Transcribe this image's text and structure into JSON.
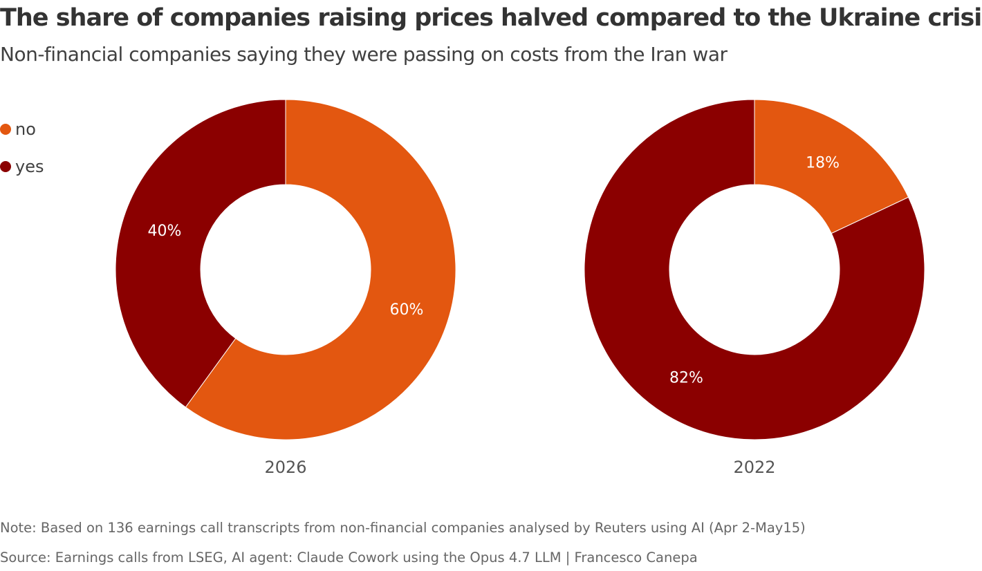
{
  "title": "The share of companies raising prices halved compared to the Ukraine crisis",
  "subtitle": "Non-financial companies saying they were passing on costs from the Iran war",
  "legend": [
    {
      "label": "no",
      "color": "#e35710"
    },
    {
      "label": "yes",
      "color": "#8b0000"
    }
  ],
  "note": "Note: Based on 136 earnings call transcripts from non-financial companies analysed by Reuters using AI (Apr 2-May15)",
  "source": "Source: Earnings calls from LSEG, AI agent: Claude Cowork using the Opus 4.7 LLM | Francesco Canepa",
  "chart_data": [
    {
      "type": "pie",
      "subtype": "donut",
      "label": "2026",
      "slices": [
        {
          "name": "no",
          "value": 60,
          "label": "60%",
          "color": "#e35710"
        },
        {
          "name": "yes",
          "value": 40,
          "label": "40%",
          "color": "#8b0000"
        }
      ]
    },
    {
      "type": "pie",
      "subtype": "donut",
      "label": "2022",
      "slices": [
        {
          "name": "no",
          "value": 18,
          "label": "18%",
          "color": "#e35710"
        },
        {
          "name": "yes",
          "value": 82,
          "label": "82%",
          "color": "#8b0000"
        }
      ]
    }
  ]
}
